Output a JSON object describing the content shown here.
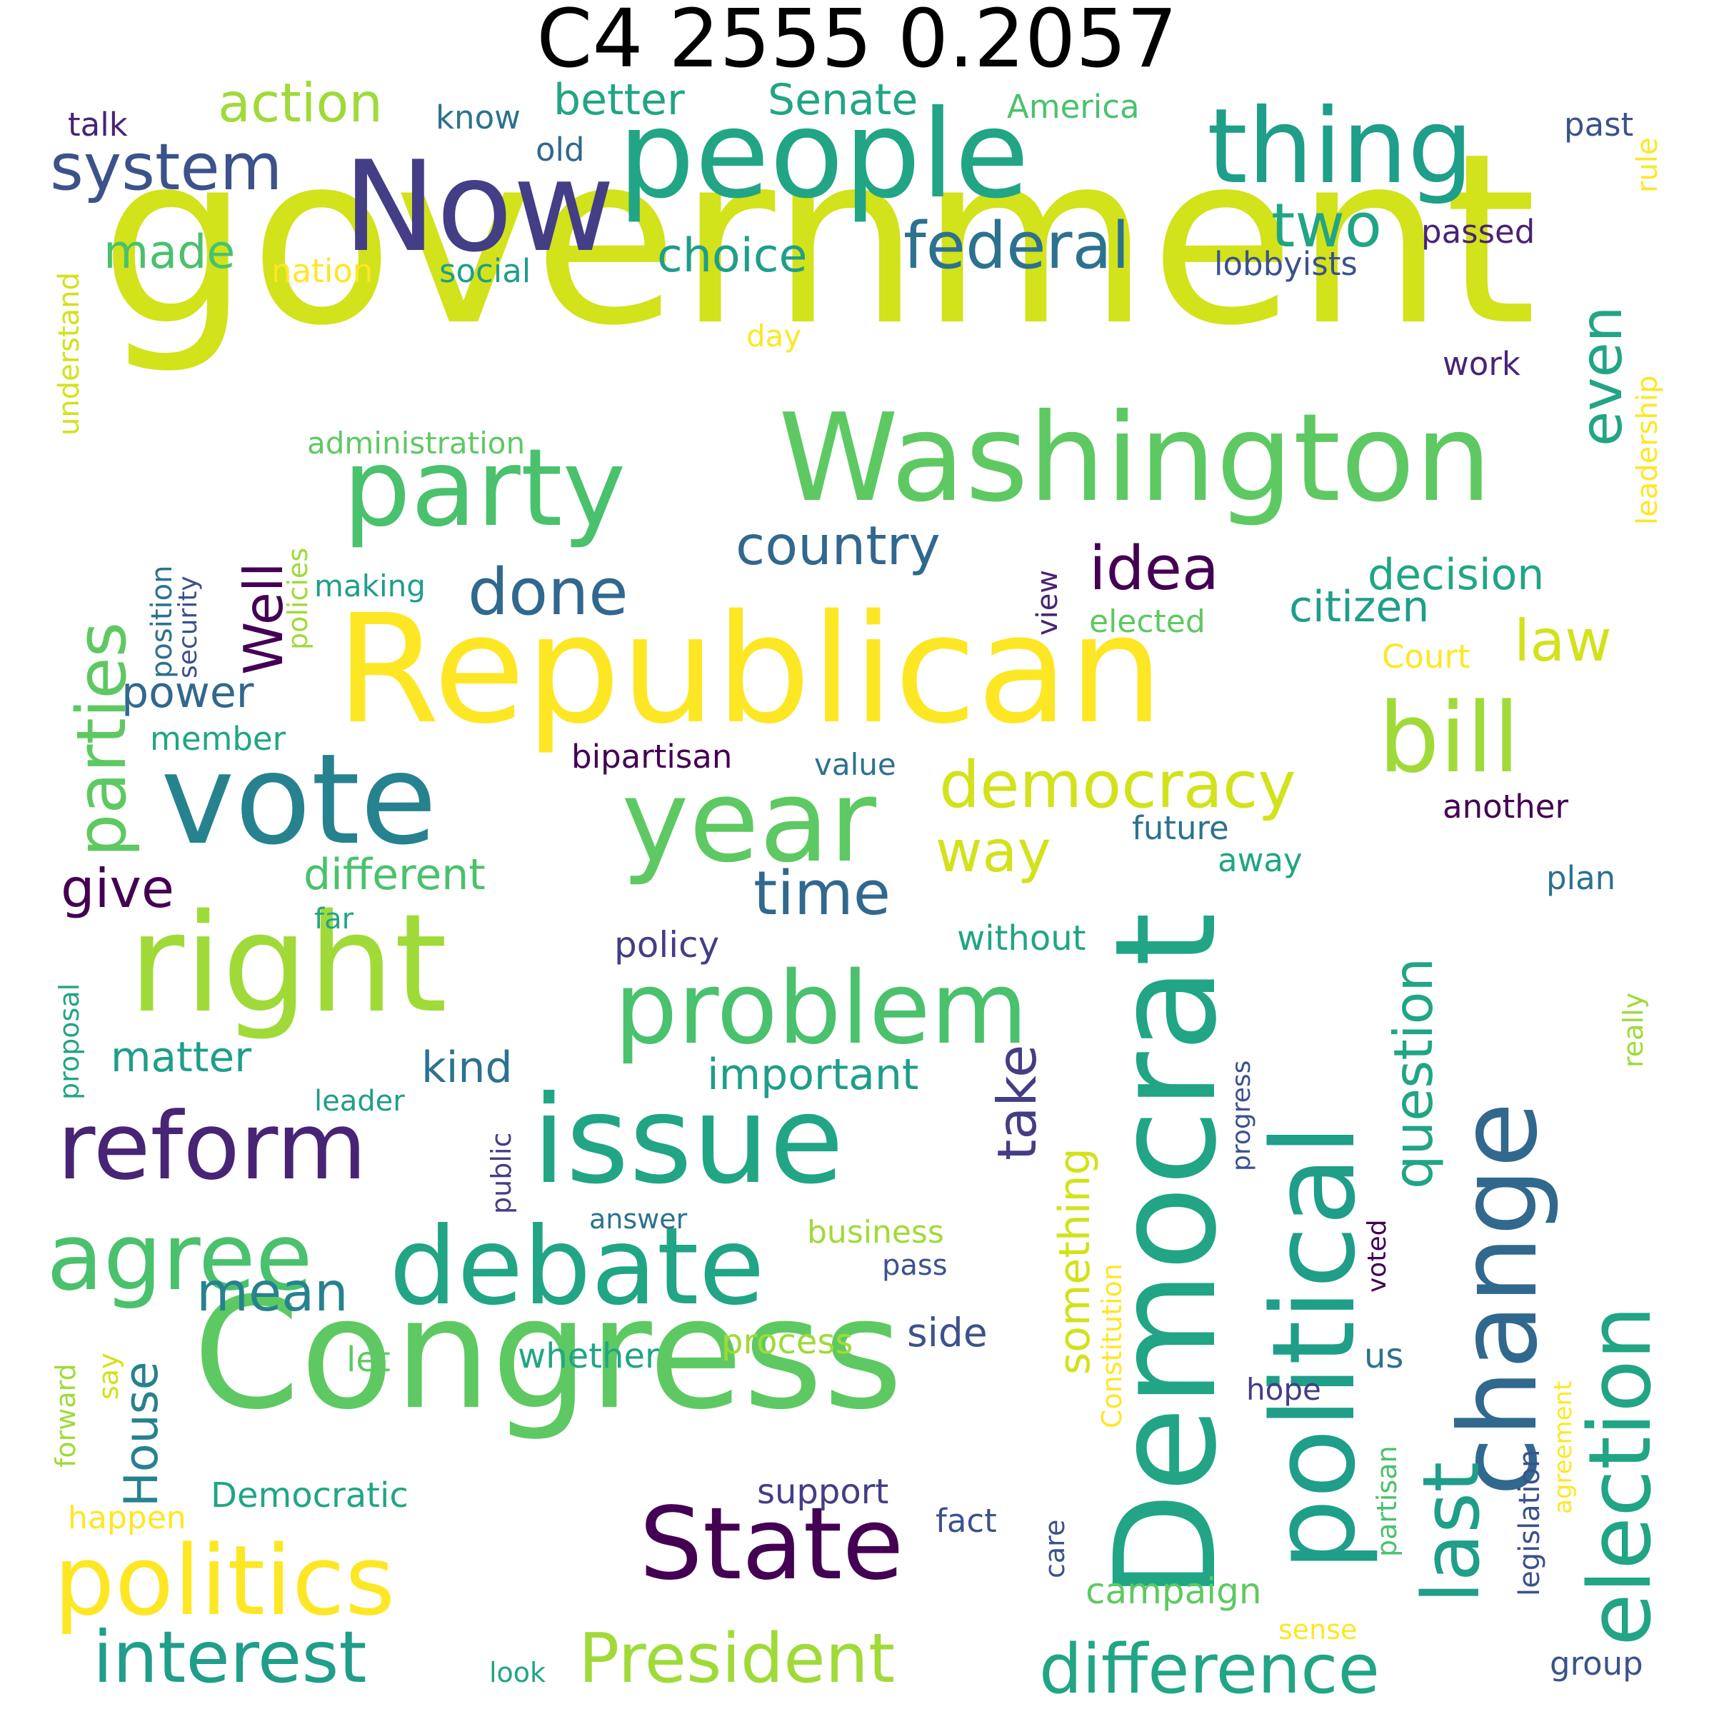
{
  "title": "C4 2555 0.2057",
  "colors": {
    "yellow": "#fde725",
    "lime": "#d2e21b",
    "lightgreen": "#a0da39",
    "green": "#5ec962",
    "seagreen": "#4ac16d",
    "teal": "#21a585",
    "tealblue": "#1f9e89",
    "cyan": "#26828e",
    "steel": "#2c728e",
    "blue": "#31688e",
    "slate": "#3b528b",
    "indigo": "#433e85",
    "violet": "#482475",
    "purple": "#440154"
  },
  "words": [
    {
      "w": "government",
      "c": "lime"
    },
    {
      "w": "Republican",
      "c": "yellow"
    },
    {
      "w": "Congress",
      "c": "green"
    },
    {
      "w": "Washington",
      "c": "green"
    },
    {
      "w": "people",
      "c": "teal"
    },
    {
      "w": "Now",
      "c": "indigo"
    },
    {
      "w": "thing",
      "c": "tealblue"
    },
    {
      "w": "party",
      "c": "seagreen"
    },
    {
      "w": "right",
      "c": "lightgreen"
    },
    {
      "w": "vote",
      "c": "cyan"
    },
    {
      "w": "year",
      "c": "green"
    },
    {
      "w": "issue",
      "c": "teal"
    },
    {
      "w": "debate",
      "c": "teal"
    },
    {
      "w": "Democrat",
      "c": "teal"
    },
    {
      "w": "political",
      "c": "tealblue"
    },
    {
      "w": "change",
      "c": "blue"
    },
    {
      "w": "election",
      "c": "teal"
    },
    {
      "w": "problem",
      "c": "seagreen"
    },
    {
      "w": "State",
      "c": "purple"
    },
    {
      "w": "politics",
      "c": "yellow"
    },
    {
      "w": "reform",
      "c": "violet"
    },
    {
      "w": "agree",
      "c": "seagreen"
    },
    {
      "w": "bill",
      "c": "lightgreen"
    },
    {
      "w": "last",
      "c": "tealblue"
    },
    {
      "w": "parties",
      "c": "green"
    },
    {
      "w": "democracy",
      "c": "lime"
    },
    {
      "w": "interest",
      "c": "tealblue"
    },
    {
      "w": "President",
      "c": "lightgreen"
    },
    {
      "w": "difference",
      "c": "teal"
    },
    {
      "w": "system",
      "c": "slate"
    },
    {
      "w": "federal",
      "c": "steel"
    },
    {
      "w": "action",
      "c": "lightgreen"
    },
    {
      "w": "two",
      "c": "teal"
    },
    {
      "w": "even",
      "c": "teal"
    },
    {
      "w": "idea",
      "c": "purple"
    },
    {
      "w": "Well",
      "c": "purple"
    },
    {
      "w": "done",
      "c": "blue"
    },
    {
      "w": "country",
      "c": "blue"
    },
    {
      "w": "question",
      "c": "teal"
    },
    {
      "w": "take",
      "c": "indigo"
    },
    {
      "w": "time",
      "c": "blue"
    },
    {
      "w": "way",
      "c": "lime"
    },
    {
      "w": "law",
      "c": "lime"
    },
    {
      "w": "give",
      "c": "purple"
    },
    {
      "w": "mean",
      "c": "cyan"
    },
    {
      "w": "House",
      "c": "cyan"
    },
    {
      "w": "something",
      "c": "lime"
    },
    {
      "w": "better",
      "c": "teal"
    },
    {
      "w": "Senate",
      "c": "teal"
    },
    {
      "w": "made",
      "c": "seagreen"
    },
    {
      "w": "choice",
      "c": "tealblue"
    },
    {
      "w": "decision",
      "c": "teal"
    },
    {
      "w": "citizen",
      "c": "tealblue"
    },
    {
      "w": "power",
      "c": "blue"
    },
    {
      "w": "different",
      "c": "seagreen"
    },
    {
      "w": "important",
      "c": "tealblue"
    },
    {
      "w": "kind",
      "c": "steel"
    },
    {
      "w": "matter",
      "c": "tealblue"
    },
    {
      "w": "side",
      "c": "slate"
    },
    {
      "w": "America",
      "c": "seagreen"
    },
    {
      "w": "know",
      "c": "steel"
    },
    {
      "w": "talk",
      "c": "violet"
    },
    {
      "w": "old",
      "c": "blue"
    },
    {
      "w": "past",
      "c": "slate"
    },
    {
      "w": "passed",
      "c": "violet"
    },
    {
      "w": "rule",
      "c": "yellow"
    },
    {
      "w": "nation",
      "c": "yellow"
    },
    {
      "w": "social",
      "c": "tealblue"
    },
    {
      "w": "lobbyists",
      "c": "slate"
    },
    {
      "w": "day",
      "c": "yellow"
    },
    {
      "w": "work",
      "c": "violet"
    },
    {
      "w": "understand",
      "c": "lime"
    },
    {
      "w": "administration",
      "c": "green"
    },
    {
      "w": "leadership",
      "c": "yellow"
    },
    {
      "w": "position",
      "c": "steel"
    },
    {
      "w": "security",
      "c": "slate"
    },
    {
      "w": "policies",
      "c": "lightgreen"
    },
    {
      "w": "making",
      "c": "tealblue"
    },
    {
      "w": "view",
      "c": "violet"
    },
    {
      "w": "elected",
      "c": "green"
    },
    {
      "w": "Court",
      "c": "yellow"
    },
    {
      "w": "member",
      "c": "teal"
    },
    {
      "w": "bipartisan",
      "c": "purple"
    },
    {
      "w": "value",
      "c": "steel"
    },
    {
      "w": "another",
      "c": "purple"
    },
    {
      "w": "future",
      "c": "steel"
    },
    {
      "w": "away",
      "c": "teal"
    },
    {
      "w": "plan",
      "c": "steel"
    },
    {
      "w": "far",
      "c": "teal"
    },
    {
      "w": "policy",
      "c": "indigo"
    },
    {
      "w": "without",
      "c": "teal"
    },
    {
      "w": "really",
      "c": "lightgreen"
    },
    {
      "w": "proposal",
      "c": "teal"
    },
    {
      "w": "progress",
      "c": "slate"
    },
    {
      "w": "leader",
      "c": "tealblue"
    },
    {
      "w": "public",
      "c": "indigo"
    },
    {
      "w": "answer",
      "c": "steel"
    },
    {
      "w": "business",
      "c": "lightgreen"
    },
    {
      "w": "Constitution",
      "c": "yellow"
    },
    {
      "w": "voted",
      "c": "purple"
    },
    {
      "w": "pass",
      "c": "slate"
    },
    {
      "w": "let",
      "c": "green"
    },
    {
      "w": "whether",
      "c": "teal"
    },
    {
      "w": "process",
      "c": "lightgreen"
    },
    {
      "w": "us",
      "c": "steel"
    },
    {
      "w": "say",
      "c": "lime"
    },
    {
      "w": "forward",
      "c": "lightgreen"
    },
    {
      "w": "hope",
      "c": "indigo"
    },
    {
      "w": "legislation",
      "c": "slate"
    },
    {
      "w": "agreement",
      "c": "yellow"
    },
    {
      "w": "Democratic",
      "c": "teal"
    },
    {
      "w": "support",
      "c": "indigo"
    },
    {
      "w": "happen",
      "c": "yellow"
    },
    {
      "w": "fact",
      "c": "slate"
    },
    {
      "w": "care",
      "c": "slate"
    },
    {
      "w": "campaign",
      "c": "green"
    },
    {
      "w": "partisan",
      "c": "seagreen"
    },
    {
      "w": "sense",
      "c": "yellow"
    },
    {
      "w": "look",
      "c": "teal"
    },
    {
      "w": "group",
      "c": "slate"
    }
  ]
}
